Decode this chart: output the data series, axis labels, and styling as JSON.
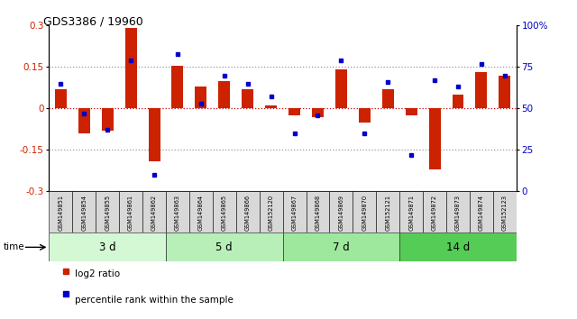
{
  "title": "GDS3386 / 19960",
  "samples": [
    "GSM149851",
    "GSM149854",
    "GSM149855",
    "GSM149861",
    "GSM149862",
    "GSM149863",
    "GSM149864",
    "GSM149865",
    "GSM149866",
    "GSM152120",
    "GSM149867",
    "GSM149868",
    "GSM149869",
    "GSM149870",
    "GSM152121",
    "GSM149871",
    "GSM149872",
    "GSM149873",
    "GSM149874",
    "GSM152123"
  ],
  "log2_ratio": [
    0.07,
    -0.09,
    -0.08,
    0.29,
    -0.19,
    0.155,
    0.08,
    0.1,
    0.07,
    0.01,
    -0.025,
    -0.03,
    0.14,
    -0.05,
    0.07,
    -0.025,
    -0.22,
    0.05,
    0.13,
    0.12
  ],
  "percentile": [
    65,
    47,
    37,
    79,
    10,
    83,
    53,
    70,
    65,
    57,
    35,
    46,
    79,
    35,
    66,
    22,
    67,
    63,
    77,
    70
  ],
  "groups": [
    {
      "label": "3 d",
      "start": 0,
      "end": 5,
      "color": "#d4f7d4"
    },
    {
      "label": "5 d",
      "start": 5,
      "end": 10,
      "color": "#b8eeb8"
    },
    {
      "label": "7 d",
      "start": 10,
      "end": 15,
      "color": "#9de89d"
    },
    {
      "label": "14 d",
      "start": 15,
      "end": 20,
      "color": "#55cc55"
    }
  ],
  "bar_color": "#cc2200",
  "dot_color": "#0000cc",
  "ylim_left": [
    -0.3,
    0.3
  ],
  "ylim_right": [
    0,
    100
  ],
  "yticks_left": [
    -0.3,
    -0.15,
    0.0,
    0.15,
    0.3
  ],
  "yticks_right": [
    0,
    25,
    50,
    75,
    100
  ],
  "ytick_labels_left": [
    "-0.3",
    "-0.15",
    "0",
    "0.15",
    "0.3"
  ],
  "ytick_labels_right": [
    "0",
    "25",
    "50",
    "75",
    "100%"
  ],
  "hlines": [
    -0.15,
    0.0,
    0.15
  ],
  "hline_colors": [
    "#999999",
    "#cc0000",
    "#999999"
  ],
  "legend_log2": "log2 ratio",
  "legend_pct": "percentile rank within the sample"
}
